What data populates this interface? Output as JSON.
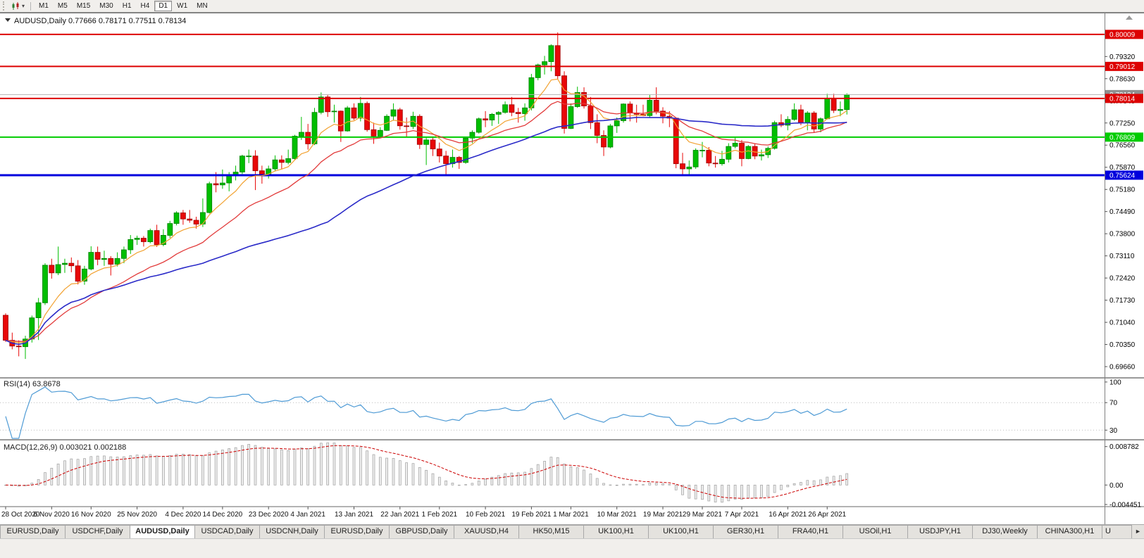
{
  "icons": {
    "caret_down": "▾",
    "scroll_right": "►"
  },
  "toolbar": {
    "timeframes": [
      {
        "label": "M1",
        "active": false
      },
      {
        "label": "M5",
        "active": false
      },
      {
        "label": "M15",
        "active": false
      },
      {
        "label": "M30",
        "active": false
      },
      {
        "label": "H1",
        "active": false
      },
      {
        "label": "H4",
        "active": false
      },
      {
        "label": "D1",
        "active": true
      },
      {
        "label": "W1",
        "active": false
      },
      {
        "label": "MN",
        "active": false
      }
    ]
  },
  "tabs": {
    "items": [
      {
        "label": "EURUSD,Daily",
        "active": false
      },
      {
        "label": "USDCHF,Daily",
        "active": false
      },
      {
        "label": "AUDUSD,Daily",
        "active": true
      },
      {
        "label": "USDCAD,Daily",
        "active": false
      },
      {
        "label": "USDCNH,Daily",
        "active": false
      },
      {
        "label": "EURUSD,Daily",
        "active": false
      },
      {
        "label": "GBPUSD,Daily",
        "active": false
      },
      {
        "label": "XAUUSD,H4",
        "active": false
      },
      {
        "label": "HK50,M15",
        "active": false
      },
      {
        "label": "UK100,H1",
        "active": false
      },
      {
        "label": "UK100,H1",
        "active": false
      },
      {
        "label": "GER30,H1",
        "active": false
      },
      {
        "label": "FRA40,H1",
        "active": false
      },
      {
        "label": "USOil,H1",
        "active": false
      },
      {
        "label": "USDJPY,H1",
        "active": false
      },
      {
        "label": "DJ30,Weekly",
        "active": false
      },
      {
        "label": "CHINA300,H1",
        "active": false
      },
      {
        "label": "U",
        "active": false,
        "truncated": true
      }
    ]
  },
  "chart_data": {
    "type": "candlestick",
    "title": "AUDUSD,Daily",
    "ohlc_text": "0.77666 0.78171 0.77511 0.78134",
    "colors": {
      "bull": "#00BE00",
      "bull_stroke": "#008000",
      "bear": "#E80808",
      "bear_stroke": "#9E0000",
      "ma_fast": "#F2A231",
      "ma_mid": "#E23B3B",
      "ma_slow": "#2A2AC8",
      "rsi": "#4F9BD5",
      "macd_signal": "#CC0000",
      "macd_hist_fill": "#ECECEC",
      "macd_hist_stroke": "#A0A0A0"
    },
    "price_range": {
      "max": 0.80642,
      "min": 0.69354
    },
    "price_axis": [
      "0.79320",
      "0.78630",
      "0.77940",
      "0.77250",
      "0.76560",
      "0.75870",
      "0.75180",
      "0.74490",
      "0.73800",
      "0.73110",
      "0.72420",
      "0.71730",
      "0.71040",
      "0.70350",
      "0.69660"
    ],
    "hlines": [
      {
        "price": 0.80009,
        "label": "0.80009",
        "color": "#DD0000",
        "width": 2
      },
      {
        "price": 0.79012,
        "label": "0.79012",
        "color": "#DD0000",
        "width": 2
      },
      {
        "price": 0.78014,
        "label": "0.78014",
        "color": "#DD0000",
        "width": 2
      },
      {
        "price": 0.76809,
        "label": "0.76809",
        "color": "#00CC00",
        "width": 2
      },
      {
        "price": 0.75624,
        "label": "0.75624",
        "color": "#0000DD",
        "width": 3
      }
    ],
    "bid_line": {
      "price": 0.78134,
      "label": "0.78134",
      "color": "#B4B4B4",
      "box_color": "#8F8F8F"
    },
    "moving_averages": [
      {
        "name": "ma-fast-line",
        "period": 8,
        "method": "ema",
        "color_key": "ma_fast",
        "width": 1.2
      },
      {
        "name": "ma-mid-line",
        "period": 20,
        "method": "ema",
        "color_key": "ma_mid",
        "width": 1.3
      },
      {
        "name": "ma-slow-line",
        "period": 50,
        "method": "sma",
        "color_key": "ma_slow",
        "width": 1.6
      }
    ],
    "date_labels": [
      [
        "28 Oct 2020",
        0
      ],
      [
        "6 Nov 2020",
        7
      ],
      [
        "16 Nov 2020",
        13
      ],
      [
        "25 Nov 2020",
        20
      ],
      [
        "4 Dec 2020",
        27
      ],
      [
        "14 Dec 2020",
        33
      ],
      [
        "23 Dec 2020",
        40
      ],
      [
        "4 Jan 2021",
        46
      ],
      [
        "13 Jan 2021",
        53
      ],
      [
        "22 Jan 2021",
        60
      ],
      [
        "1 Feb 2021",
        66
      ],
      [
        "10 Feb 2021",
        73
      ],
      [
        "19 Feb 2021",
        80
      ],
      [
        "1 Mar 2021",
        86
      ],
      [
        "10 Mar 2021",
        93
      ],
      [
        "19 Mar 2021",
        100
      ],
      [
        "29 Mar 2021",
        106
      ],
      [
        "7 Apr 2021",
        112
      ],
      [
        "16 Apr 2021",
        119
      ],
      [
        "26 Apr 2021",
        125
      ]
    ],
    "rsi": {
      "name": "RSI(14)",
      "value": "63.8678",
      "period": 14,
      "levels": [
        [
          100,
          "100"
        ],
        [
          70,
          "70"
        ],
        [
          30,
          "30"
        ]
      ],
      "scale_max": 105,
      "scale_min": 18
    },
    "macd": {
      "name": "MACD(12,26,9)",
      "value": "0.003021 0.002188",
      "fast": 12,
      "slow": 26,
      "signal": 9,
      "axis": [
        [
          0.008782,
          "0.008782"
        ],
        [
          0,
          "0.00"
        ],
        [
          -0.004451,
          "-0.004451"
        ]
      ],
      "scale_max": 0.01002,
      "scale_min": -0.00462
    },
    "candles": [
      [
        0.7126,
        0.7132,
        0.7043,
        0.7048
      ],
      [
        0.7048,
        0.7072,
        0.702,
        0.703
      ],
      [
        0.703,
        0.7048,
        0.6998,
        0.7028
      ],
      [
        0.7028,
        0.7062,
        0.699,
        0.7052
      ],
      [
        0.7052,
        0.7125,
        0.7041,
        0.7118
      ],
      [
        0.7118,
        0.718,
        0.7049,
        0.7165
      ],
      [
        0.7165,
        0.7288,
        0.7158,
        0.7282
      ],
      [
        0.7282,
        0.7302,
        0.724,
        0.7258
      ],
      [
        0.7258,
        0.734,
        0.7251,
        0.7284
      ],
      [
        0.7284,
        0.7302,
        0.7258,
        0.7288
      ],
      [
        0.7288,
        0.7306,
        0.726,
        0.728
      ],
      [
        0.728,
        0.7298,
        0.7222,
        0.7232
      ],
      [
        0.7232,
        0.728,
        0.7221,
        0.727
      ],
      [
        0.727,
        0.7341,
        0.7266,
        0.7322
      ],
      [
        0.7322,
        0.734,
        0.7282,
        0.73
      ],
      [
        0.73,
        0.7327,
        0.728,
        0.7303
      ],
      [
        0.7303,
        0.731,
        0.725,
        0.7285
      ],
      [
        0.7285,
        0.7322,
        0.7278,
        0.7303
      ],
      [
        0.7303,
        0.734,
        0.7288,
        0.733
      ],
      [
        0.733,
        0.7376,
        0.7317,
        0.7362
      ],
      [
        0.7362,
        0.7374,
        0.7345,
        0.7366
      ],
      [
        0.7366,
        0.7373,
        0.734,
        0.7355
      ],
      [
        0.7355,
        0.7396,
        0.735,
        0.739
      ],
      [
        0.739,
        0.7408,
        0.7339,
        0.7346
      ],
      [
        0.7346,
        0.7394,
        0.7341,
        0.7375
      ],
      [
        0.7375,
        0.742,
        0.7367,
        0.7412
      ],
      [
        0.7412,
        0.745,
        0.7406,
        0.7445
      ],
      [
        0.7445,
        0.7454,
        0.7408,
        0.7426
      ],
      [
        0.7426,
        0.7454,
        0.7414,
        0.7422
      ],
      [
        0.7422,
        0.7433,
        0.7396,
        0.741
      ],
      [
        0.741,
        0.749,
        0.7401,
        0.7446
      ],
      [
        0.7446,
        0.7542,
        0.7443,
        0.7536
      ],
      [
        0.7536,
        0.7572,
        0.7509,
        0.7532
      ],
      [
        0.7532,
        0.758,
        0.752,
        0.7538
      ],
      [
        0.7538,
        0.7572,
        0.7512,
        0.7562
      ],
      [
        0.7562,
        0.7592,
        0.7546,
        0.7572
      ],
      [
        0.7572,
        0.7626,
        0.7566,
        0.7622
      ],
      [
        0.7622,
        0.7642,
        0.76,
        0.7622
      ],
      [
        0.7622,
        0.764,
        0.7516,
        0.7576
      ],
      [
        0.7576,
        0.7592,
        0.7536,
        0.7562
      ],
      [
        0.7562,
        0.7592,
        0.7552,
        0.7582
      ],
      [
        0.7582,
        0.7624,
        0.7576,
        0.761
      ],
      [
        0.761,
        0.7624,
        0.7582,
        0.7602
      ],
      [
        0.7602,
        0.7642,
        0.7596,
        0.7614
      ],
      [
        0.7614,
        0.7688,
        0.761,
        0.7684
      ],
      [
        0.7684,
        0.7744,
        0.7672,
        0.7696
      ],
      [
        0.7696,
        0.7722,
        0.7642,
        0.766
      ],
      [
        0.766,
        0.7772,
        0.7656,
        0.7758
      ],
      [
        0.7758,
        0.782,
        0.7752,
        0.7806
      ],
      [
        0.7806,
        0.7812,
        0.7744,
        0.776
      ],
      [
        0.776,
        0.7782,
        0.7726,
        0.7762
      ],
      [
        0.7762,
        0.7764,
        0.7666,
        0.77
      ],
      [
        0.77,
        0.7778,
        0.7698,
        0.7772
      ],
      [
        0.7772,
        0.7786,
        0.7734,
        0.774
      ],
      [
        0.774,
        0.7806,
        0.773,
        0.7786
      ],
      [
        0.7786,
        0.7792,
        0.7698,
        0.7704
      ],
      [
        0.7704,
        0.7726,
        0.766,
        0.7684
      ],
      [
        0.7684,
        0.7712,
        0.768,
        0.7702
      ],
      [
        0.7702,
        0.7752,
        0.77,
        0.7746
      ],
      [
        0.7746,
        0.7786,
        0.7732,
        0.7766
      ],
      [
        0.7766,
        0.7772,
        0.7704,
        0.7716
      ],
      [
        0.7716,
        0.7742,
        0.7682,
        0.7714
      ],
      [
        0.7714,
        0.776,
        0.7706,
        0.7746
      ],
      [
        0.7746,
        0.7752,
        0.7644,
        0.7658
      ],
      [
        0.7658,
        0.7682,
        0.7594,
        0.7672
      ],
      [
        0.7672,
        0.7682,
        0.7622,
        0.7644
      ],
      [
        0.7644,
        0.7664,
        0.7602,
        0.7622
      ],
      [
        0.7622,
        0.7638,
        0.7564,
        0.7598
      ],
      [
        0.7598,
        0.7642,
        0.7586,
        0.7618
      ],
      [
        0.7618,
        0.7622,
        0.7582,
        0.7602
      ],
      [
        0.7602,
        0.768,
        0.7598,
        0.7678
      ],
      [
        0.7678,
        0.7702,
        0.7662,
        0.7696
      ],
      [
        0.7696,
        0.7742,
        0.7692,
        0.7738
      ],
      [
        0.7738,
        0.7762,
        0.7712,
        0.7734
      ],
      [
        0.7734,
        0.7756,
        0.7716,
        0.7752
      ],
      [
        0.7752,
        0.7762,
        0.7722,
        0.7758
      ],
      [
        0.7758,
        0.7792,
        0.7754,
        0.7782
      ],
      [
        0.7782,
        0.7806,
        0.7746,
        0.7758
      ],
      [
        0.7758,
        0.7772,
        0.7726,
        0.7754
      ],
      [
        0.7754,
        0.7786,
        0.7732,
        0.7772
      ],
      [
        0.7772,
        0.7878,
        0.7764,
        0.7866
      ],
      [
        0.7866,
        0.791,
        0.7858,
        0.7906
      ],
      [
        0.7906,
        0.7934,
        0.7876,
        0.7916
      ],
      [
        0.7916,
        0.797,
        0.7886,
        0.7966
      ],
      [
        0.7966,
        0.8007,
        0.786,
        0.7872
      ],
      [
        0.7872,
        0.7886,
        0.7692,
        0.7708
      ],
      [
        0.7708,
        0.7786,
        0.7706,
        0.7776
      ],
      [
        0.7776,
        0.7838,
        0.7772,
        0.782
      ],
      [
        0.782,
        0.7836,
        0.777,
        0.7778
      ],
      [
        0.7778,
        0.7806,
        0.7706,
        0.7726
      ],
      [
        0.7726,
        0.7752,
        0.7662,
        0.7686
      ],
      [
        0.7686,
        0.7702,
        0.7622,
        0.765
      ],
      [
        0.765,
        0.7722,
        0.7646,
        0.7716
      ],
      [
        0.7716,
        0.7742,
        0.7694,
        0.7732
      ],
      [
        0.7732,
        0.7786,
        0.7726,
        0.7784
      ],
      [
        0.7784,
        0.7792,
        0.773,
        0.7756
      ],
      [
        0.7756,
        0.7782,
        0.7726,
        0.7752
      ],
      [
        0.7752,
        0.7782,
        0.7746,
        0.7748
      ],
      [
        0.7748,
        0.7812,
        0.7742,
        0.7796
      ],
      [
        0.7796,
        0.7836,
        0.7752,
        0.7762
      ],
      [
        0.7762,
        0.7774,
        0.7724,
        0.7746
      ],
      [
        0.7746,
        0.7762,
        0.7712,
        0.774
      ],
      [
        0.774,
        0.7742,
        0.7584,
        0.7598
      ],
      [
        0.7598,
        0.7632,
        0.7562,
        0.7582
      ],
      [
        0.7582,
        0.7608,
        0.7562,
        0.7588
      ],
      [
        0.7588,
        0.7646,
        0.7582,
        0.764
      ],
      [
        0.764,
        0.7666,
        0.7618,
        0.764
      ],
      [
        0.764,
        0.765,
        0.759,
        0.76
      ],
      [
        0.76,
        0.7622,
        0.7586,
        0.7598
      ],
      [
        0.7598,
        0.7638,
        0.7592,
        0.7612
      ],
      [
        0.7612,
        0.7662,
        0.7602,
        0.7652
      ],
      [
        0.7652,
        0.7682,
        0.7646,
        0.7662
      ],
      [
        0.7662,
        0.7672,
        0.759,
        0.7614
      ],
      [
        0.7614,
        0.7656,
        0.7612,
        0.7652
      ],
      [
        0.7652,
        0.7662,
        0.7612,
        0.7622
      ],
      [
        0.7622,
        0.7642,
        0.7608,
        0.7626
      ],
      [
        0.7626,
        0.7652,
        0.7616,
        0.7646
      ],
      [
        0.7646,
        0.7732,
        0.7642,
        0.7726
      ],
      [
        0.7726,
        0.7752,
        0.7712,
        0.7718
      ],
      [
        0.7718,
        0.7746,
        0.7702,
        0.7736
      ],
      [
        0.7736,
        0.7786,
        0.7732,
        0.7766
      ],
      [
        0.7766,
        0.7782,
        0.7718,
        0.7726
      ],
      [
        0.7726,
        0.7762,
        0.7702,
        0.7756
      ],
      [
        0.7756,
        0.7762,
        0.7696,
        0.7706
      ],
      [
        0.7706,
        0.7742,
        0.7696,
        0.7738
      ],
      [
        0.7738,
        0.7816,
        0.7736,
        0.78
      ],
      [
        0.78,
        0.7816,
        0.7756,
        0.7764
      ],
      [
        0.7764,
        0.7792,
        0.7746,
        0.7767
      ],
      [
        0.77666,
        0.78171,
        0.77511,
        0.78134
      ]
    ]
  }
}
